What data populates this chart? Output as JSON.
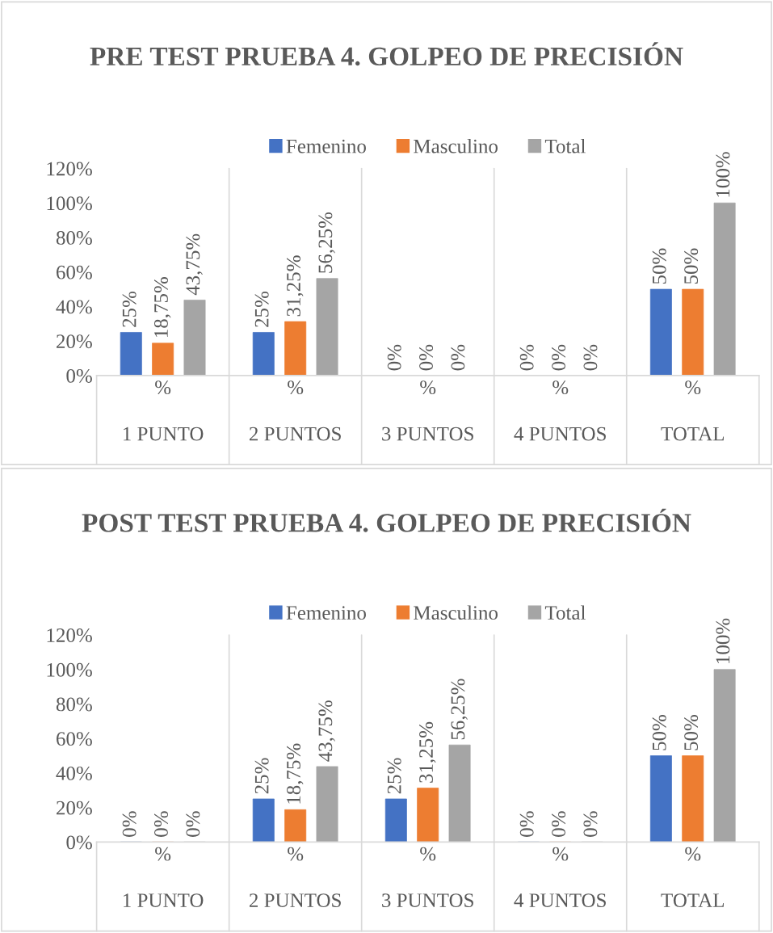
{
  "chart_data": [
    {
      "type": "bar",
      "title": "PRE TEST PRUEBA 4. GOLPEO DE PRECISIÓN",
      "categories": [
        "%\n\n1 PUNTO",
        "%\n\n2 PUNTOS",
        "%\n\n3 PUNTOS",
        "%\n\n4 PUNTOS",
        "%\n\nTOTAL"
      ],
      "series": [
        {
          "name": "Femenino",
          "color": "#4472c4",
          "values": [
            25,
            25,
            0,
            0,
            50
          ],
          "value_labels": [
            "25%",
            "25%",
            "0%",
            "0%",
            "50%"
          ]
        },
        {
          "name": "Masculino",
          "color": "#ed7d31",
          "values": [
            18.75,
            31.25,
            0,
            0,
            50
          ],
          "value_labels": [
            "18,75%",
            "31,25%",
            "0%",
            "0%",
            "50%"
          ]
        },
        {
          "name": "Total",
          "color": "#a5a5a5",
          "values": [
            43.75,
            56.25,
            0,
            0,
            100
          ],
          "value_labels": [
            "43,75%",
            "56,25%",
            "0%",
            "0%",
            "100%"
          ]
        }
      ],
      "ylim": [
        0,
        120
      ],
      "yticks": [
        {
          "value": 0,
          "label": "0%"
        },
        {
          "value": 20,
          "label": "20%"
        },
        {
          "value": 40,
          "label": "40%"
        },
        {
          "value": 60,
          "label": "60%"
        },
        {
          "value": 80,
          "label": "80%"
        },
        {
          "value": 100,
          "label": "100%"
        },
        {
          "value": 120,
          "label": "120%"
        }
      ],
      "legend": "top",
      "grid": false
    },
    {
      "type": "bar",
      "title": "POST TEST PRUEBA 4. GOLPEO DE PRECISIÓN",
      "categories": [
        "%\n\n1 PUNTO",
        "%\n\n2 PUNTOS",
        "%\n\n3 PUNTOS",
        "%\n\n4 PUNTOS",
        "%\n\nTOTAL"
      ],
      "series": [
        {
          "name": "Femenino",
          "color": "#4472c4",
          "values": [
            0,
            25,
            25,
            0,
            50
          ],
          "value_labels": [
            "0%",
            "25%",
            "25%",
            "0%",
            "50%"
          ]
        },
        {
          "name": "Masculino",
          "color": "#ed7d31",
          "values": [
            0,
            18.75,
            31.25,
            0,
            50
          ],
          "value_labels": [
            "0%",
            "18,75%",
            "31,25%",
            "0%",
            "50%"
          ]
        },
        {
          "name": "Total",
          "color": "#a5a5a5",
          "values": [
            0,
            43.75,
            56.25,
            0,
            100
          ],
          "value_labels": [
            "0%",
            "43,75%",
            "56,25%",
            "0%",
            "100%"
          ]
        }
      ],
      "ylim": [
        0,
        120
      ],
      "yticks": [
        {
          "value": 0,
          "label": "0%"
        },
        {
          "value": 20,
          "label": "20%"
        },
        {
          "value": 40,
          "label": "40%"
        },
        {
          "value": 60,
          "label": "60%"
        },
        {
          "value": 80,
          "label": "80%"
        },
        {
          "value": 100,
          "label": "100%"
        },
        {
          "value": 120,
          "label": "120%"
        }
      ],
      "legend": "top",
      "grid": false
    }
  ]
}
